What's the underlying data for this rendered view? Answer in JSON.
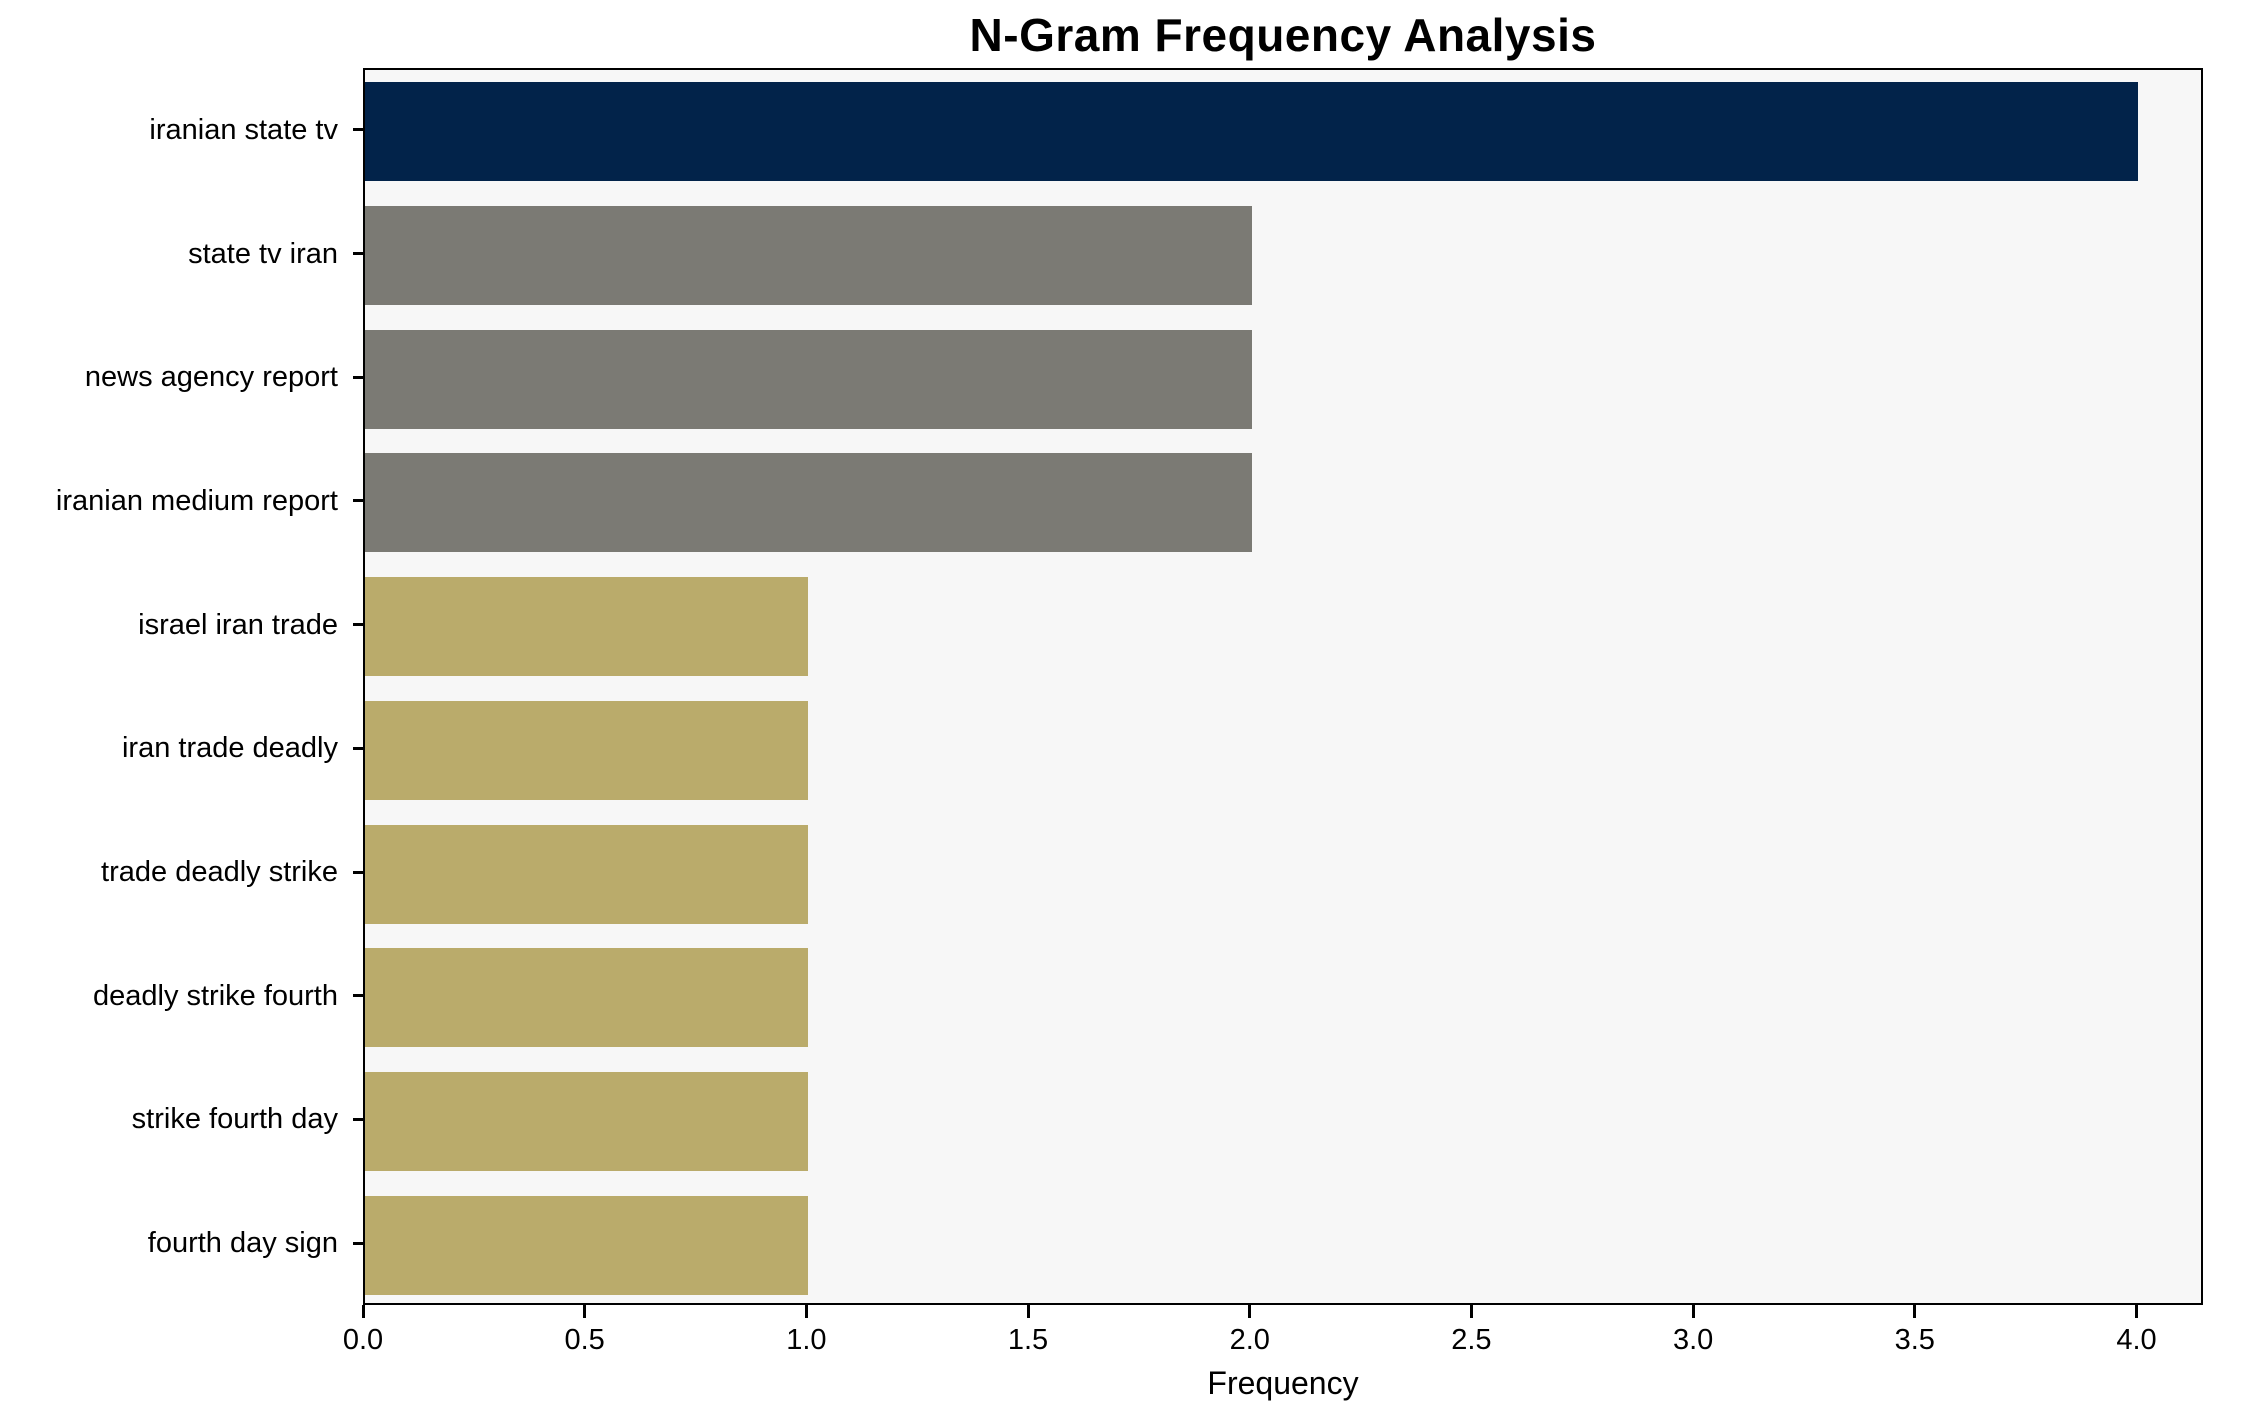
{
  "chart_data": {
    "type": "bar",
    "orientation": "horizontal",
    "title": "N-Gram Frequency Analysis",
    "xlabel": "Frequency",
    "ylabel": "",
    "categories": [
      "iranian state tv",
      "state tv iran",
      "news agency report",
      "iranian medium report",
      "israel iran trade",
      "iran trade deadly",
      "trade deadly strike",
      "deadly strike fourth",
      "strike fourth day",
      "fourth day sign"
    ],
    "values": [
      4,
      2,
      2,
      2,
      1,
      1,
      1,
      1,
      1,
      1
    ],
    "bar_colors": [
      "#02234A",
      "#7B7A74",
      "#7B7A74",
      "#7B7A74",
      "#BAAB6B",
      "#BAAB6B",
      "#BAAB6B",
      "#BAAB6B",
      "#BAAB6B",
      "#BAAB6B"
    ],
    "xtick_labels": [
      "0.0",
      "0.5",
      "1.0",
      "1.5",
      "2.0",
      "2.5",
      "3.0",
      "3.5",
      "4.0"
    ],
    "xlim": [
      0,
      4.15
    ],
    "grid": false,
    "legend": null,
    "colors": {
      "plot_background": "#F7F7F7",
      "figure_background": "#FFFFFF",
      "spine": "#000000",
      "text": "#000000"
    }
  }
}
